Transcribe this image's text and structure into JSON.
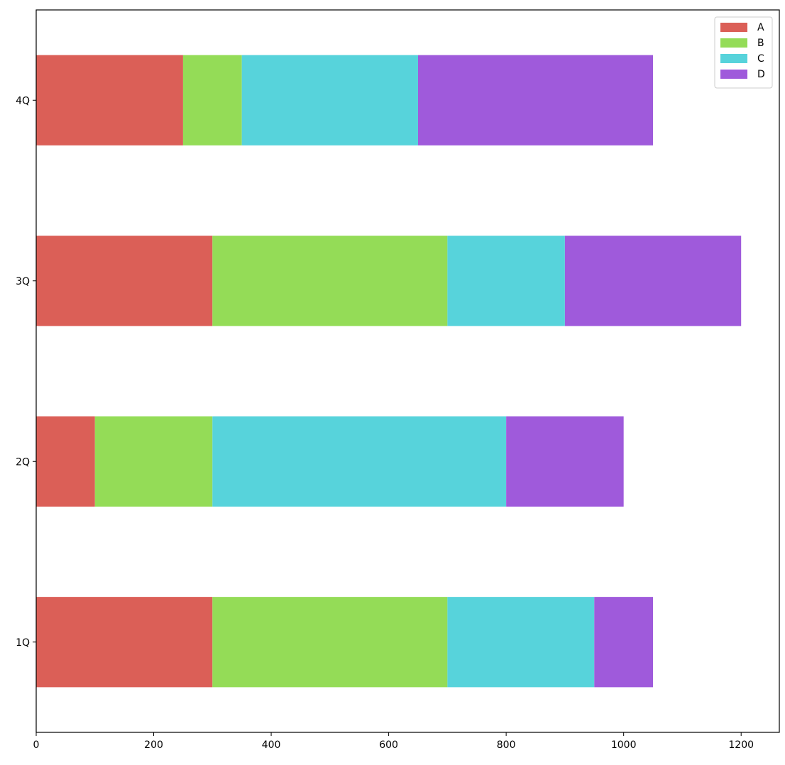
{
  "chart_data": {
    "type": "bar",
    "orientation": "horizontal",
    "stacked": true,
    "categories": [
      "1Q",
      "2Q",
      "3Q",
      "4Q"
    ],
    "series": [
      {
        "name": "A",
        "color": "#db5f57",
        "values": [
          300,
          100,
          300,
          250
        ]
      },
      {
        "name": "B",
        "color": "#94dc57",
        "values": [
          400,
          200,
          400,
          100
        ]
      },
      {
        "name": "C",
        "color": "#57d3db",
        "values": [
          250,
          500,
          200,
          300
        ]
      },
      {
        "name": "D",
        "color": "#9f5adb",
        "values": [
          100,
          200,
          300,
          400
        ]
      }
    ],
    "xticks": [
      "0",
      "200",
      "400",
      "600",
      "800",
      "1000",
      "1200"
    ],
    "xlim": [
      0,
      1265
    ],
    "title": "",
    "xlabel": "",
    "ylabel": "",
    "grid": false,
    "legend_position": "top-right"
  }
}
